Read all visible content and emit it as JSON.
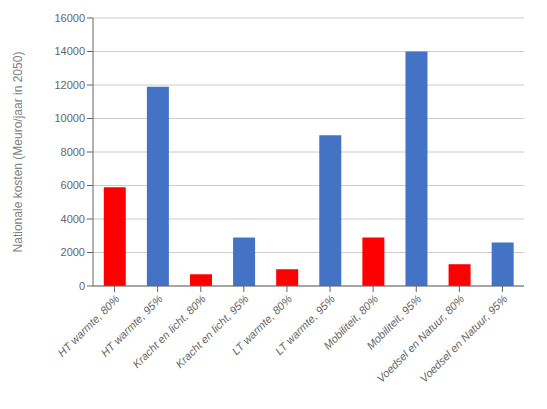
{
  "chart_data": {
    "type": "bar",
    "categories": [
      "HT warmte, 80%",
      "HT warmte, 95%",
      "Kracht en licht, 80%",
      "Kracht en licht, 95%",
      "LT warmte, 80%",
      "LT warmte, 95%",
      "Mobiliteit, 80%",
      "Mobiliteit, 95%",
      "Voedsel en Natuur, 80%",
      "Voedsel en Natuur, 95%"
    ],
    "values": [
      5900,
      11900,
      700,
      2900,
      1000,
      9000,
      2900,
      14000,
      1300,
      2600
    ],
    "colors": [
      "#ff0000",
      "#4472c4",
      "#ff0000",
      "#4472c4",
      "#ff0000",
      "#4472c4",
      "#ff0000",
      "#4472c4",
      "#ff0000",
      "#4472c4"
    ],
    "ylabel": "Nationale kosten (Meuro/jaar in 2050)",
    "ylim": [
      0,
      16000
    ],
    "yticks": [
      0,
      2000,
      4000,
      6000,
      8000,
      10000,
      12000,
      14000,
      16000
    ],
    "grid": true
  }
}
